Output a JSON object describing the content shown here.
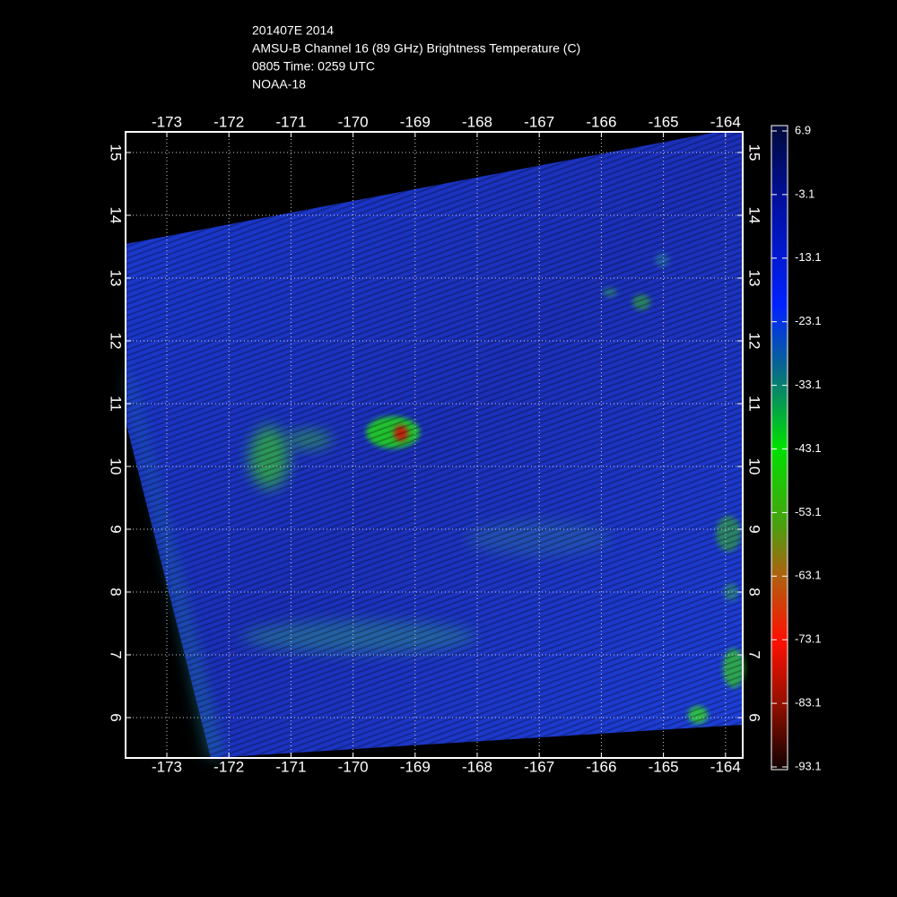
{
  "title": [
    "201407E 2014",
    "AMSU-B Channel 16 (89 GHz) Brightness Temperature (C)",
    "0805 Time: 0259 UTC",
    "NOAA-18"
  ],
  "map": {
    "xticks": [
      -173,
      -172,
      -171,
      -170,
      -169,
      -168,
      -167,
      -166,
      -165,
      -164
    ],
    "yticks": [
      15,
      14,
      13,
      12,
      11,
      10,
      9,
      8,
      7,
      6
    ]
  },
  "colorbar": {
    "ticks": [
      6.9,
      -3.1,
      -13.1,
      -23.1,
      -33.1,
      -43.1,
      -53.1,
      -63.1,
      -73.1,
      -83.1,
      -93.1
    ]
  }
}
